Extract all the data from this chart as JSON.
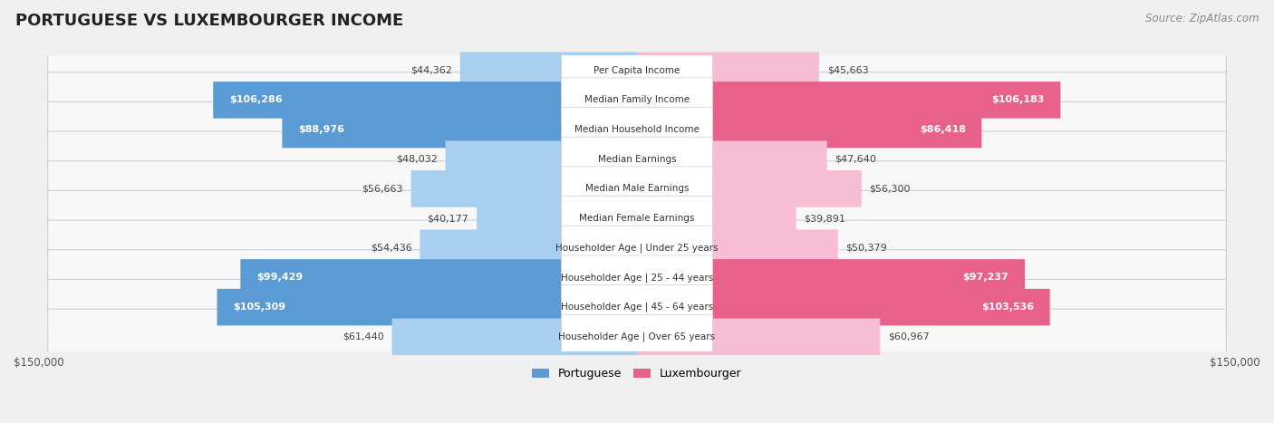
{
  "title": "PORTUGUESE VS LUXEMBOURGER INCOME",
  "source": "Source: ZipAtlas.com",
  "categories": [
    "Per Capita Income",
    "Median Family Income",
    "Median Household Income",
    "Median Earnings",
    "Median Male Earnings",
    "Median Female Earnings",
    "Householder Age | Under 25 years",
    "Householder Age | 25 - 44 years",
    "Householder Age | 45 - 64 years",
    "Householder Age | Over 65 years"
  ],
  "portuguese_values": [
    44362,
    106286,
    88976,
    48032,
    56663,
    40177,
    54436,
    99429,
    105309,
    61440
  ],
  "luxembourger_values": [
    45663,
    106183,
    86418,
    47640,
    56300,
    39891,
    50379,
    97237,
    103536,
    60967
  ],
  "portuguese_light": "#a8cff0",
  "portuguese_dark": "#5b9bd5",
  "luxembourger_light": "#f7bdd4",
  "luxembourger_dark": "#e8618a",
  "max_value": 150000,
  "background_color": "#f0f0f0",
  "row_bg_color": "#f8f8f8",
  "title_fontsize": 13,
  "source_fontsize": 8.5,
  "value_fontsize": 8,
  "label_fontsize": 7.5,
  "legend_fontsize": 9,
  "axis_label_fontsize": 8.5,
  "large_threshold": 70000
}
